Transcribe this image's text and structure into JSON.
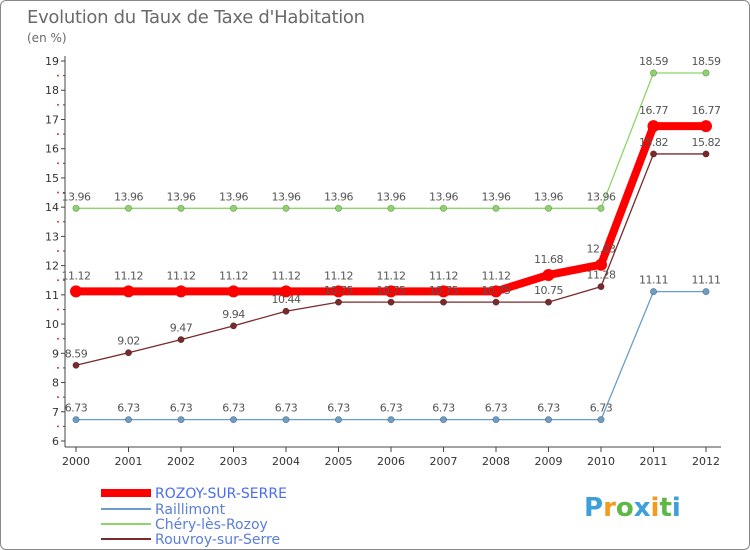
{
  "chart_data": {
    "type": "line",
    "title": "Evolution du Taux de Taxe d'Habitation",
    "unit_label": "(en %)",
    "xlabel": "",
    "ylabel": "(en %)",
    "ylim": [
      6,
      19
    ],
    "yticks": [
      "6",
      "7",
      "8",
      "9",
      "10",
      "11",
      "12",
      "13",
      "14",
      "15",
      "16",
      "17",
      "18",
      "19"
    ],
    "categories": [
      "2000",
      "2001",
      "2002",
      "2003",
      "2004",
      "2005",
      "2006",
      "2007",
      "2008",
      "2009",
      "2010",
      "2011",
      "2012"
    ],
    "series": [
      {
        "name": "ROZOY-SUR-SERRE",
        "color": "#ff0000",
        "values": [
          11.12,
          11.12,
          11.12,
          11.12,
          11.12,
          11.12,
          11.12,
          11.12,
          11.12,
          11.68,
          12.03,
          16.77,
          16.77
        ],
        "labels": [
          "11.12",
          "11.12",
          "11.12",
          "11.12",
          "11.12",
          "11.12",
          "11.12",
          "11.12",
          "11.12",
          "11.68",
          "12.03",
          "16.77",
          "16.77"
        ]
      },
      {
        "name": "Raillimont",
        "color": "#6a9ec7",
        "values": [
          6.73,
          6.73,
          6.73,
          6.73,
          6.73,
          6.73,
          6.73,
          6.73,
          6.73,
          6.73,
          6.73,
          11.11,
          11.11
        ],
        "labels": [
          "6.73",
          "6.73",
          "6.73",
          "6.73",
          "6.73",
          "6.73",
          "6.73",
          "6.73",
          "6.73",
          "6.73",
          "6.73",
          "11.11",
          "11.11"
        ]
      },
      {
        "name": "Chéry-lès-Rozoy",
        "color": "#8ed46a",
        "values": [
          13.96,
          13.96,
          13.96,
          13.96,
          13.96,
          13.96,
          13.96,
          13.96,
          13.96,
          13.96,
          13.96,
          18.59,
          18.59
        ],
        "labels": [
          "13.96",
          "13.96",
          "13.96",
          "13.96",
          "13.96",
          "13.96",
          "13.96",
          "13.96",
          "13.96",
          "13.96",
          "13.96",
          "18.59",
          "18.59"
        ]
      },
      {
        "name": "Rouvroy-sur-Serre",
        "color": "#7a2a2a",
        "values": [
          8.59,
          9.02,
          9.47,
          9.94,
          10.44,
          10.75,
          10.75,
          10.75,
          10.75,
          10.75,
          11.28,
          15.82,
          15.82
        ],
        "labels": [
          "8.59",
          "9.02",
          "9.47",
          "9.94",
          "10.44",
          "10.75",
          "10.75",
          "10.75",
          "10.75",
          "10.75",
          "11.28",
          "15.82",
          "15.82"
        ]
      }
    ],
    "legend_position": "bottom-left",
    "grid": false
  },
  "brand": {
    "letters": [
      "P",
      "r",
      "o",
      "x",
      "i",
      "t",
      "i"
    ],
    "colors": [
      "#3da0d8",
      "#f29b1e",
      "#5fb846",
      "#3da0d8",
      "#f29b1e",
      "#5fb846",
      "#3da0d8"
    ]
  }
}
